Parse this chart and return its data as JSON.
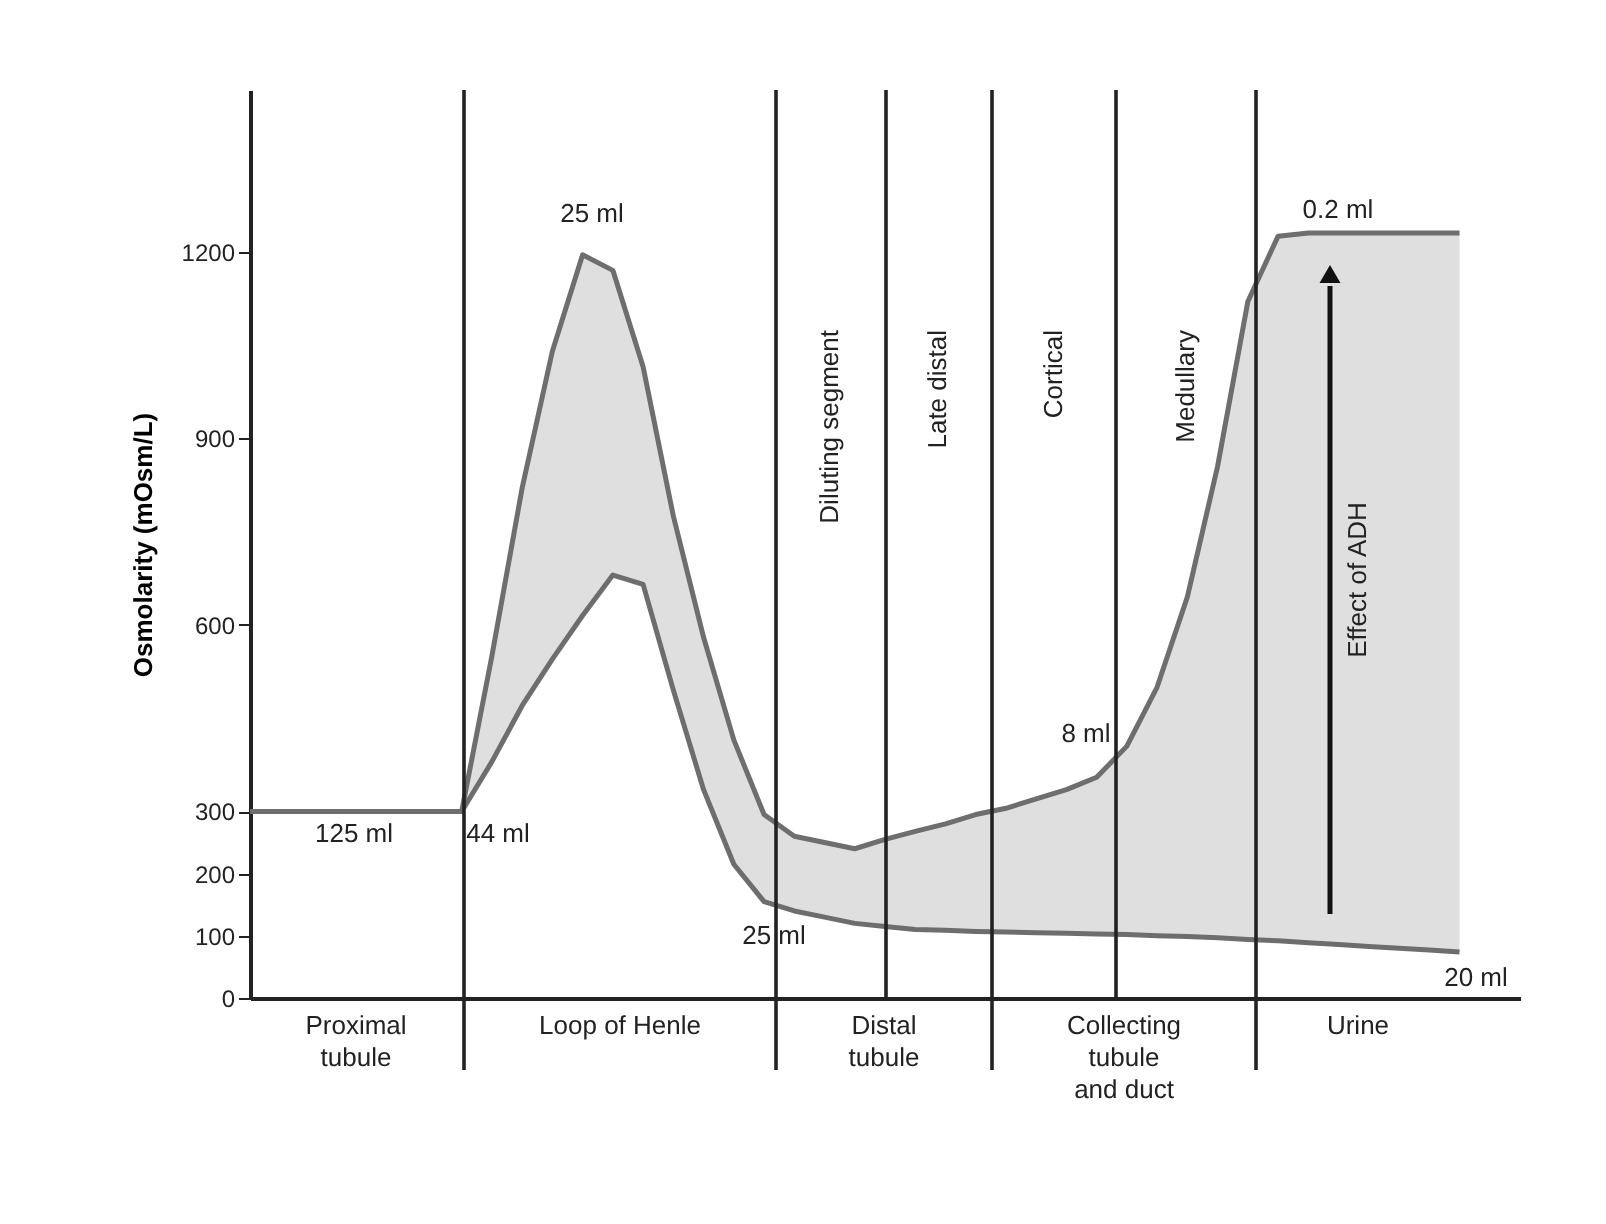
{
  "chart_data": {
    "type": "area",
    "ylabel": "Osmolarity  (mOsm/L)",
    "categories": [
      null,
      null,
      null,
      null,
      null,
      null,
      null,
      null,
      null,
      null,
      null,
      null,
      null,
      null,
      null,
      null,
      null,
      null,
      null,
      null,
      null,
      null,
      null,
      null,
      null,
      null,
      null,
      null,
      null,
      null,
      null,
      null,
      null,
      null,
      null,
      null,
      null,
      null,
      null,
      null,
      null
    ],
    "ylim": [
      0,
      1460
    ],
    "yticks": [
      0,
      100,
      200,
      300,
      600,
      900,
      1200
    ],
    "tick_labels": "y",
    "grid": false,
    "series": [
      {
        "type": "line",
        "color": "#6e6e6e",
        "values": [
          300,
          300,
          300,
          300,
          300,
          300,
          300,
          300,
          380,
          470,
          545,
          615,
          680,
          665,
          495,
          335,
          215,
          155,
          140,
          130,
          120,
          115,
          110,
          109,
          107,
          106,
          105,
          104,
          103,
          102,
          100,
          99,
          97,
          94,
          92,
          89,
          86,
          83,
          80,
          77,
          74
        ]
      },
      {
        "color": "#6e6e6e",
        "values": [
          300,
          300,
          300,
          300,
          300,
          300,
          300,
          300,
          550,
          820,
          1040,
          1195,
          1170,
          1015,
          775,
          580,
          415,
          295,
          260,
          250,
          240,
          255,
          268,
          280,
          295,
          305,
          320,
          335,
          355,
          405,
          500,
          645,
          855,
          1120,
          1225,
          1230,
          1230,
          1230,
          1230,
          1230,
          1230
        ]
      }
    ],
    "annotations": [
      "25 ml",
      "0.2 ml",
      "8 ml",
      "25 ml",
      "125 ml",
      "44 ml",
      "20 ml",
      "Effect of ADH",
      "Diluting segment",
      "Late distal",
      "Cortical",
      "Medullary",
      "Proximal\ntubule",
      "Loop of Henle",
      "Distal\ntubule",
      "Collecting\ntubule\nand duct",
      "Urine"
    ]
  }
}
